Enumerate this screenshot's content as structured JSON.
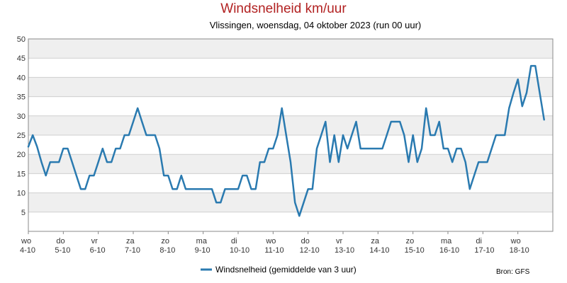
{
  "chart_data": {
    "type": "line",
    "title": "Windsnelheid km/uur",
    "subtitle": "Vlissingen, woensdag, 04 oktober 2023 (run 00 uur)",
    "ylim": [
      0,
      50
    ],
    "yticks": [
      5,
      10,
      15,
      20,
      25,
      30,
      35,
      40,
      45,
      50
    ],
    "xlim": [
      0,
      15
    ],
    "xtick_labels": [
      {
        "day": "wo",
        "date": "4-10"
      },
      {
        "day": "do",
        "date": "5-10"
      },
      {
        "day": "vr",
        "date": "6-10"
      },
      {
        "day": "za",
        "date": "7-10"
      },
      {
        "day": "zo",
        "date": "8-10"
      },
      {
        "day": "ma",
        "date": "9-10"
      },
      {
        "day": "di",
        "date": "10-10"
      },
      {
        "day": "wo",
        "date": "11-10"
      },
      {
        "day": "do",
        "date": "12-10"
      },
      {
        "day": "vr",
        "date": "13-10"
      },
      {
        "day": "za",
        "date": "14-10"
      },
      {
        "day": "zo",
        "date": "15-10"
      },
      {
        "day": "ma",
        "date": "16-10"
      },
      {
        "day": "di",
        "date": "17-10"
      },
      {
        "day": "wo",
        "date": "18-10"
      }
    ],
    "grid": "horizontal bands",
    "legend_position": "bottom-center",
    "series": [
      {
        "name": "Windsnelheid (gemiddelde van 3 uur)",
        "color": "#2a7ab0",
        "points": [
          [
            0.0,
            22
          ],
          [
            0.125,
            25
          ],
          [
            0.25,
            22
          ],
          [
            0.375,
            18
          ],
          [
            0.5,
            14.5
          ],
          [
            0.625,
            18
          ],
          [
            0.75,
            18
          ],
          [
            0.875,
            18
          ],
          [
            1.0,
            21.5
          ],
          [
            1.125,
            21.5
          ],
          [
            1.25,
            18
          ],
          [
            1.375,
            14.5
          ],
          [
            1.5,
            11
          ],
          [
            1.625,
            11
          ],
          [
            1.75,
            14.5
          ],
          [
            1.875,
            14.5
          ],
          [
            2.0,
            18
          ],
          [
            2.125,
            21.5
          ],
          [
            2.25,
            18
          ],
          [
            2.375,
            18
          ],
          [
            2.5,
            21.5
          ],
          [
            2.625,
            21.5
          ],
          [
            2.75,
            25
          ],
          [
            2.875,
            25
          ],
          [
            3.0,
            28.5
          ],
          [
            3.125,
            32
          ],
          [
            3.25,
            28.5
          ],
          [
            3.375,
            25
          ],
          [
            3.5,
            25
          ],
          [
            3.625,
            25
          ],
          [
            3.75,
            21.5
          ],
          [
            3.875,
            14.5
          ],
          [
            4.0,
            14.5
          ],
          [
            4.125,
            11
          ],
          [
            4.25,
            11
          ],
          [
            4.375,
            14.5
          ],
          [
            4.5,
            11
          ],
          [
            4.625,
            11
          ],
          [
            4.75,
            11
          ],
          [
            4.875,
            11
          ],
          [
            5.0,
            11
          ],
          [
            5.125,
            11
          ],
          [
            5.25,
            11
          ],
          [
            5.375,
            7.5
          ],
          [
            5.5,
            7.5
          ],
          [
            5.625,
            11
          ],
          [
            5.75,
            11
          ],
          [
            5.875,
            11
          ],
          [
            6.0,
            11
          ],
          [
            6.125,
            14.5
          ],
          [
            6.25,
            14.5
          ],
          [
            6.375,
            11
          ],
          [
            6.5,
            11
          ],
          [
            6.625,
            18
          ],
          [
            6.75,
            18
          ],
          [
            6.875,
            21.5
          ],
          [
            7.0,
            21.5
          ],
          [
            7.125,
            25
          ],
          [
            7.25,
            32
          ],
          [
            7.375,
            25
          ],
          [
            7.5,
            18
          ],
          [
            7.625,
            7.5
          ],
          [
            7.75,
            4
          ],
          [
            7.875,
            7.5
          ],
          [
            8.0,
            11
          ],
          [
            8.125,
            11
          ],
          [
            8.25,
            21.5
          ],
          [
            8.375,
            25
          ],
          [
            8.5,
            28.5
          ],
          [
            8.625,
            18
          ],
          [
            8.75,
            25
          ],
          [
            8.875,
            18
          ],
          [
            9.0,
            25
          ],
          [
            9.125,
            21.5
          ],
          [
            9.25,
            25
          ],
          [
            9.375,
            28.5
          ],
          [
            9.5,
            21.5
          ],
          [
            9.625,
            21.5
          ],
          [
            9.75,
            21.5
          ],
          [
            9.875,
            21.5
          ],
          [
            10.0,
            21.5
          ],
          [
            10.125,
            21.5
          ],
          [
            10.25,
            25
          ],
          [
            10.375,
            28.5
          ],
          [
            10.5,
            28.5
          ],
          [
            10.625,
            28.5
          ],
          [
            10.75,
            25
          ],
          [
            10.875,
            18
          ],
          [
            11.0,
            25
          ],
          [
            11.125,
            18
          ],
          [
            11.25,
            21.5
          ],
          [
            11.375,
            32
          ],
          [
            11.5,
            25
          ],
          [
            11.625,
            25
          ],
          [
            11.75,
            28.5
          ],
          [
            11.875,
            21.5
          ],
          [
            12.0,
            21.5
          ],
          [
            12.125,
            18
          ],
          [
            12.25,
            21.5
          ],
          [
            12.375,
            21.5
          ],
          [
            12.5,
            18
          ],
          [
            12.625,
            11
          ],
          [
            12.75,
            14.5
          ],
          [
            12.875,
            18
          ],
          [
            13.0,
            18
          ],
          [
            13.125,
            18
          ],
          [
            13.25,
            21.5
          ],
          [
            13.375,
            25
          ],
          [
            13.5,
            25
          ],
          [
            13.625,
            25
          ],
          [
            13.75,
            32
          ],
          [
            13.875,
            36
          ],
          [
            14.0,
            39.5
          ],
          [
            14.125,
            32.5
          ],
          [
            14.25,
            36
          ],
          [
            14.375,
            43
          ],
          [
            14.5,
            43
          ],
          [
            14.625,
            36
          ],
          [
            14.75,
            29
          ]
        ]
      }
    ],
    "source_label": "Bron: GFS"
  }
}
